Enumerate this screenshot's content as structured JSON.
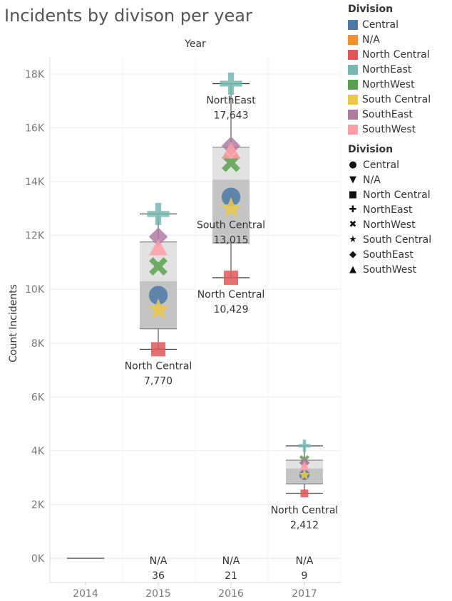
{
  "chart_data": {
    "type": "box-and-scatter",
    "title": "Incidents by divison per year",
    "column_header": "Year",
    "ylabel": "Count Incidents",
    "ylim": [
      0,
      18500
    ],
    "y_ticks": [
      0,
      2000,
      4000,
      6000,
      8000,
      10000,
      12000,
      14000,
      16000,
      18000
    ],
    "y_tick_labels": [
      "0K",
      "2K",
      "4K",
      "6K",
      "8K",
      "10K",
      "12K",
      "14K",
      "16K",
      "18K"
    ],
    "categories": [
      "2014",
      "2015",
      "2016",
      "2017"
    ],
    "series": [
      {
        "name": "Central",
        "color": "#4e79a7",
        "shape": "circle",
        "values": [
          null,
          9780,
          13430,
          3100
        ]
      },
      {
        "name": "N/A",
        "color": "#f28e2b",
        "shape": "triangle-down",
        "values": [
          null,
          36,
          21,
          9
        ]
      },
      {
        "name": "North Central",
        "color": "#e15759",
        "shape": "square",
        "values": [
          null,
          7770,
          10429,
          2412
        ]
      },
      {
        "name": "NorthEast",
        "color": "#76b7b2",
        "shape": "plus",
        "values": [
          null,
          12800,
          17643,
          4180
        ]
      },
      {
        "name": "NorthWest",
        "color": "#59a14f",
        "shape": "cross",
        "values": [
          null,
          10850,
          14700,
          3650
        ]
      },
      {
        "name": "South Central",
        "color": "#edc948",
        "shape": "star",
        "values": [
          null,
          9250,
          13015,
          3100
        ]
      },
      {
        "name": "SouthEast",
        "color": "#b07aa1",
        "shape": "diamond",
        "values": [
          null,
          11950,
          15330,
          3550
        ]
      },
      {
        "name": "SouthWest",
        "color": "#ff9da7",
        "shape": "triangle-up",
        "values": [
          null,
          11550,
          15150,
          3430
        ]
      }
    ],
    "boxes": [
      {
        "category": "2014",
        "min": 0,
        "q1": 0,
        "median": 0,
        "q3": 0,
        "max": 0
      },
      {
        "category": "2015",
        "min": 7770,
        "q1": 8530,
        "median": 10300,
        "q3": 11760,
        "max": 12800
      },
      {
        "category": "2016",
        "min": 10429,
        "q1": 11720,
        "median": 14070,
        "q3": 15280,
        "max": 17643
      },
      {
        "category": "2017",
        "min": 2412,
        "q1": 2760,
        "median": 3340,
        "q3": 3650,
        "max": 4180
      }
    ],
    "labels": [
      {
        "category": "2015",
        "line1": "North Central",
        "line2": "7,770",
        "anchor_value": 7770
      },
      {
        "category": "2016",
        "line1": "NorthEast",
        "line2": "17,643",
        "anchor_value": 17643
      },
      {
        "category": "2016",
        "line1": "South Central",
        "line2": "13,015",
        "anchor_value": 13015
      },
      {
        "category": "2016",
        "line1": "North Central",
        "line2": "10,429",
        "anchor_value": 10429
      },
      {
        "category": "2017",
        "line1": "North Central",
        "line2": "2,412",
        "anchor_value": 2412
      },
      {
        "category": "2015",
        "line1": "N/A",
        "line2": "36",
        "anchor_value": 36
      },
      {
        "category": "2016",
        "line1": "N/A",
        "line2": "21",
        "anchor_value": 21
      },
      {
        "category": "2017",
        "line1": "N/A",
        "line2": "9",
        "anchor_value": 9
      }
    ],
    "grid": true
  },
  "legend_color": {
    "title": "Division",
    "items": [
      {
        "label": "Central",
        "color": "#4e79a7"
      },
      {
        "label": "N/A",
        "color": "#f28e2b"
      },
      {
        "label": "North Central",
        "color": "#e15759"
      },
      {
        "label": "NorthEast",
        "color": "#76b7b2"
      },
      {
        "label": "NorthWest",
        "color": "#59a14f"
      },
      {
        "label": "South Central",
        "color": "#edc948"
      },
      {
        "label": "SouthEast",
        "color": "#b07aa1"
      },
      {
        "label": "SouthWest",
        "color": "#ff9da7"
      }
    ]
  },
  "legend_shape": {
    "title": "Division",
    "items": [
      {
        "label": "Central",
        "glyph": "●"
      },
      {
        "label": "N/A",
        "glyph": "▼"
      },
      {
        "label": "North Central",
        "glyph": "■"
      },
      {
        "label": "NorthEast",
        "glyph": "✚"
      },
      {
        "label": "NorthWest",
        "glyph": "✖"
      },
      {
        "label": "South Central",
        "glyph": "★"
      },
      {
        "label": "SouthEast",
        "glyph": "◆"
      },
      {
        "label": "SouthWest",
        "glyph": "▲"
      }
    ]
  }
}
